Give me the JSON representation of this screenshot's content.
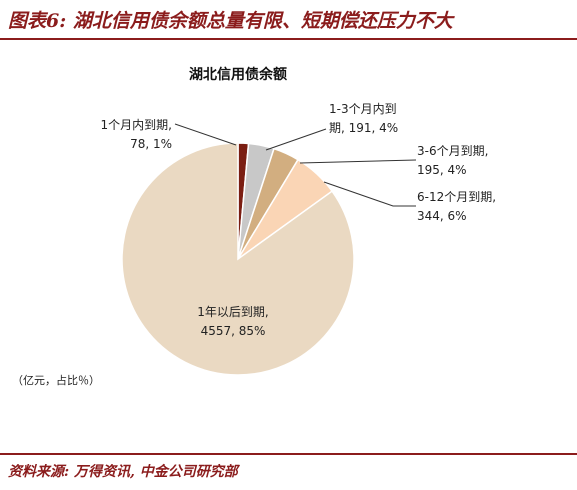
{
  "figure_title": "图表6: 湖北信用债余额总量有限、短期偿还压力不大",
  "source": "资料来源: 万得资讯, 中金公司研究部",
  "chart_data": {
    "type": "pie",
    "title": "湖北信用债余额",
    "unit_note": "（亿元，占比％）",
    "slices": [
      {
        "name": "1个月内到期",
        "value": 78,
        "pct": "1%",
        "color": "#7B1E12",
        "label_lines": [
          "1个月内到期,",
          "78, 1%"
        ]
      },
      {
        "name": "1-3个月内到期",
        "value": 191,
        "pct": "4%",
        "color": "#C8C8C8",
        "label_lines": [
          "1-3个月内到",
          "期, 191, 4%"
        ]
      },
      {
        "name": "3-6个月到期",
        "value": 195,
        "pct": "4%",
        "color": "#D2AE80",
        "label_lines": [
          "3-6个月到期,",
          "195, 4%"
        ]
      },
      {
        "name": "6-12个月到期",
        "value": 344,
        "pct": "6%",
        "color": "#FAD5B5",
        "label_lines": [
          "6-12个月到期,",
          "344, 6%"
        ]
      },
      {
        "name": "1年以后到期",
        "value": 4557,
        "pct": "85%",
        "color": "#EAD9C2",
        "label_lines": [
          "1年以后到期,",
          "4557, 85%"
        ]
      }
    ]
  }
}
